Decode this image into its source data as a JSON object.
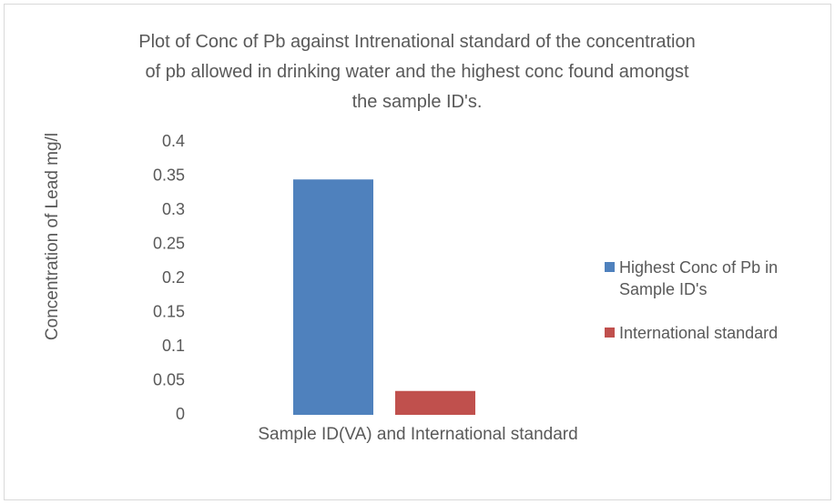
{
  "chart_data": {
    "type": "bar",
    "title": "Plot of Conc of Pb against Intrenational standard of the concentration of pb allowed in drinking water and the highest conc found amongst the sample ID's.",
    "x_label": "Sample ID(VA) and International standard",
    "y_label": "Concentration of Lead mg/l",
    "categories": [
      null
    ],
    "series": [
      {
        "name": "Highest Conc of Pb in Sample ID's",
        "color": "#4f81bd",
        "values": [
          0.345
        ]
      },
      {
        "name": "International standard",
        "color": "#c0504d",
        "values": [
          0.035
        ]
      }
    ],
    "ylim": [
      0,
      0.4
    ],
    "yticks": [
      0,
      0.05,
      0.1,
      0.15,
      0.2,
      0.25,
      0.3,
      0.35,
      0.4
    ],
    "grid": false,
    "legend": "right"
  }
}
